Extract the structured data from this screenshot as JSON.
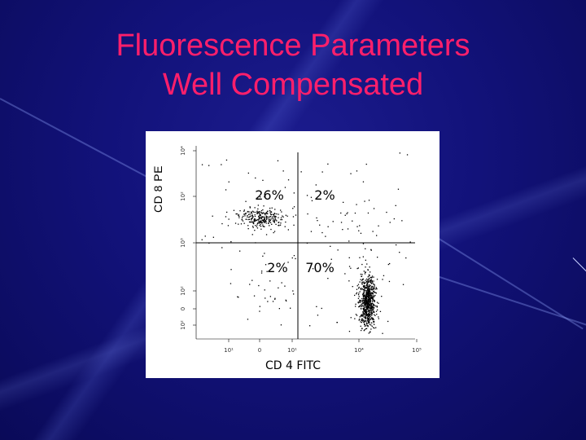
{
  "title_line1": "Fluorescence Parameters",
  "title_line2": "Well Compensated",
  "colors": {
    "background": "#12127a",
    "title": "#ff1f6b",
    "panel": "#ffffff",
    "dots": "#000000"
  },
  "chart_data": {
    "type": "scatter",
    "xlabel": "CD 4 FITC",
    "ylabel": "CD 8 PE",
    "x_scale": "log",
    "y_scale": "log",
    "x_ticks": [
      "10¹",
      "0",
      "10¹",
      "10⁴",
      "10⁵"
    ],
    "y_ticks": [
      "10²",
      "0",
      "10²",
      "10³",
      "10²",
      "10⁴"
    ],
    "quadrants": [
      {
        "position": "upper-left",
        "label": "26%"
      },
      {
        "position": "upper-right",
        "label": "2%"
      },
      {
        "position": "lower-left",
        "label": "2%"
      },
      {
        "position": "lower-right",
        "label": "70%"
      }
    ],
    "populations": [
      {
        "quadrant": "upper-left",
        "percent": 26
      },
      {
        "quadrant": "upper-right",
        "percent": 2
      },
      {
        "quadrant": "lower-left",
        "percent": 2
      },
      {
        "quadrant": "lower-right",
        "percent": 70
      }
    ],
    "grid": false,
    "legend": "none"
  }
}
